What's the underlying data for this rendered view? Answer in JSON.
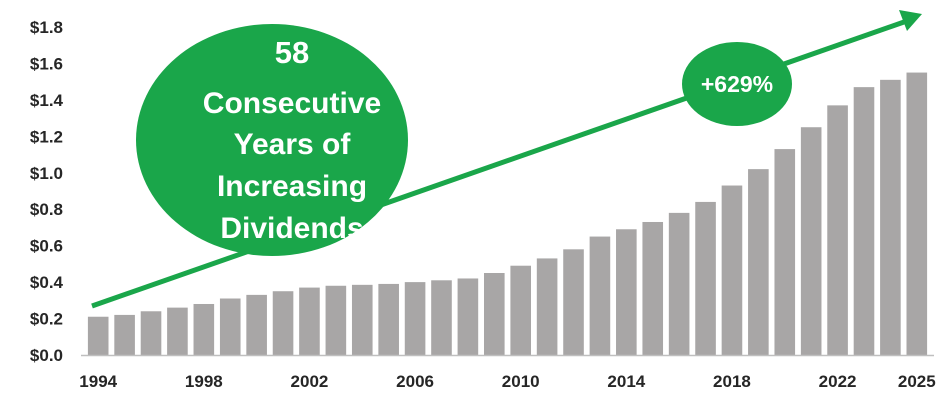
{
  "chart_data": {
    "type": "bar",
    "title": "",
    "xlabel": "",
    "ylabel": "",
    "ylim": [
      0,
      1.8
    ],
    "y_ticks": [
      "$0.0",
      "$0.2",
      "$0.4",
      "$0.6",
      "$0.8",
      "$1.0",
      "$1.2",
      "$1.4",
      "$1.6",
      "$1.8"
    ],
    "x_tick_labels": [
      "1994",
      "1998",
      "2002",
      "2006",
      "2010",
      "2014",
      "2018",
      "2022",
      "2025"
    ],
    "categories": [
      "1994",
      "1995",
      "1996",
      "1997",
      "1998",
      "1999",
      "2000",
      "2001",
      "2002",
      "2003",
      "2004",
      "2005",
      "2006",
      "2007",
      "2008",
      "2009",
      "2010",
      "2011",
      "2012",
      "2013",
      "2014",
      "2015",
      "2016",
      "2017",
      "2018",
      "2019",
      "2020",
      "2021",
      "2022",
      "2023",
      "2024",
      "2025"
    ],
    "values": [
      0.21,
      0.22,
      0.24,
      0.26,
      0.28,
      0.31,
      0.33,
      0.35,
      0.37,
      0.38,
      0.385,
      0.39,
      0.4,
      0.41,
      0.42,
      0.45,
      0.49,
      0.53,
      0.58,
      0.65,
      0.69,
      0.73,
      0.78,
      0.84,
      0.93,
      1.02,
      1.13,
      1.25,
      1.37,
      1.47,
      1.51,
      1.55
    ],
    "bar_color": "#a8a6a6",
    "accent_color": "#1aa64a",
    "grid": false,
    "annotations": {
      "trend_arrow": true,
      "growth_badge": "+629%",
      "callout_lines": [
        "58",
        "Consecutive",
        "Years of",
        "Increasing",
        "Dividends"
      ]
    }
  }
}
